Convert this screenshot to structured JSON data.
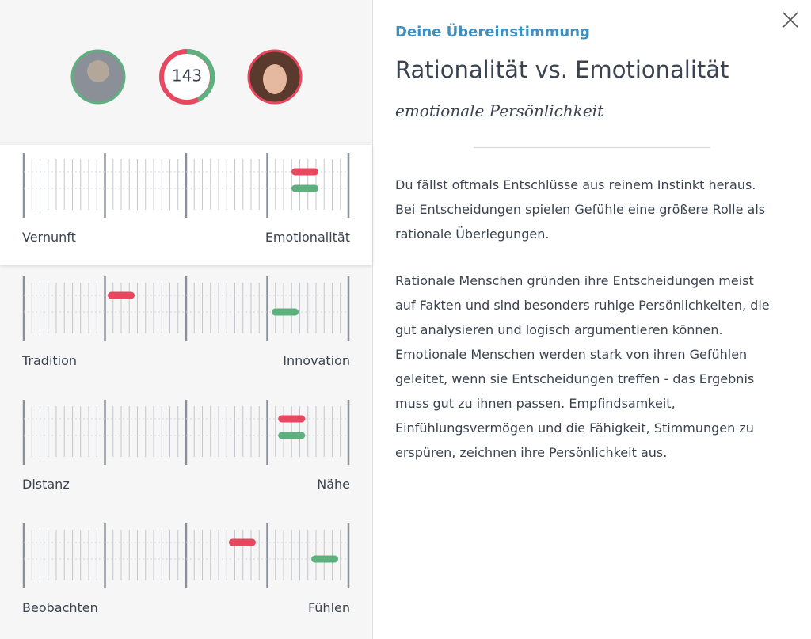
{
  "header": {
    "score": "143"
  },
  "scales": [
    {
      "left": "Vernunft",
      "right": "Emotionalität",
      "red": 86.6,
      "green": 86.6,
      "selected": true
    },
    {
      "left": "Tradition",
      "right": "Innovation",
      "red": 30,
      "green": 80.5,
      "selected": false
    },
    {
      "left": "Distanz",
      "right": "Nähe",
      "red": 82.5,
      "green": 82.5,
      "selected": false
    },
    {
      "left": "Beobachten",
      "right": "Fühlen",
      "red": 67.3,
      "green": 92.7,
      "selected": false
    }
  ],
  "detail": {
    "kicker": "Deine Übereinstimmung",
    "title": "Rationalität vs. Emotionalität",
    "subtitle": "emotionale Persönlichkeit",
    "paragraphs": [
      [
        "Du fällst oftmals Entschlüsse aus reinem Instinkt heraus.",
        "Bei Entscheidungen spielen Gefühle eine größere Rolle als",
        "rationale Überlegungen."
      ],
      [
        "Rationale Menschen gründen ihre Entscheidungen meist",
        "auf Fakten und sind besonders ruhige Persönlichkeiten, die",
        "gut analysieren und logisch argumentieren können.",
        "Emotionale Menschen werden stark von ihren Gefühlen",
        "geleitet, wenn sie Entscheidungen treffen - das Ergebnis",
        "muss gut zu ihnen passen. Empfindsamkeit,",
        "Einfühlungsvermögen und die Fähigkeit, Stimmungen zu",
        "erspüren, zeichnen ihre Persönlichkeit aus."
      ]
    ]
  }
}
